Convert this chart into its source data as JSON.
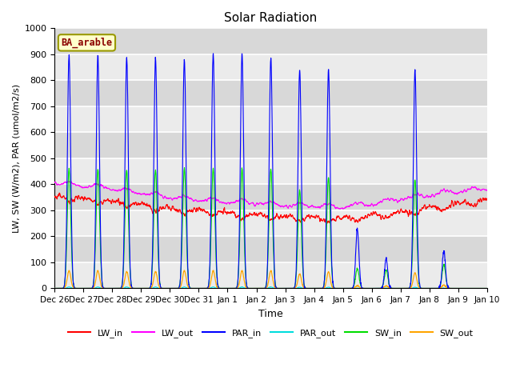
{
  "title": "Solar Radiation",
  "xlabel": "Time",
  "ylabel": "LW, SW (W/m2), PAR (umol/m2/s)",
  "annotation": "BA_arable",
  "ylim": [
    0,
    1000
  ],
  "bg_color": "#dcdcdc",
  "stripe_light": "#ebebeb",
  "stripe_dark": "#d8d8d8",
  "series_colors": {
    "LW_in": "#ff0000",
    "LW_out": "#ff00ff",
    "PAR_in": "#0000ff",
    "PAR_out": "#00dddd",
    "SW_in": "#00dd00",
    "SW_out": "#ffa500"
  },
  "x_tick_labels": [
    "Dec 26",
    "Dec 27",
    "Dec 28",
    "Dec 29",
    "Dec 30",
    "Dec 31",
    "Jan 1",
    "Jan 2",
    "Jan 3",
    "Jan 4",
    "Jan 5",
    "Jan 6",
    "Jan 7",
    "Jan 8",
    "Jan 9",
    "Jan 10"
  ],
  "n_days": 15,
  "pts_per_day": 144,
  "lw_in_base": 300,
  "lw_out_base": 360
}
